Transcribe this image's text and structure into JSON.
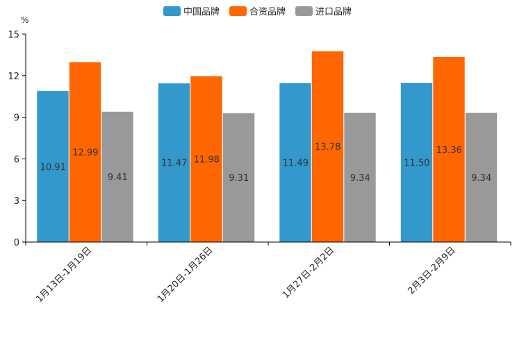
{
  "chart_data": {
    "type": "bar",
    "unit": "%",
    "categories": [
      "1月13日-1月19日",
      "1月20日-1月26日",
      "1月27日-2月2日",
      "2月3日-2月9日"
    ],
    "series": [
      {
        "name": "中国品牌",
        "color": "#3399cc",
        "values": [
          10.91,
          11.47,
          11.49,
          11.5
        ],
        "labels": [
          "10.91",
          "11.47",
          "11.49",
          "11.50"
        ]
      },
      {
        "name": "合资品牌",
        "color": "#ff6600",
        "values": [
          12.99,
          11.98,
          13.78,
          13.36
        ],
        "labels": [
          "12.99",
          "11.98",
          "13.78",
          "13.36"
        ]
      },
      {
        "name": "进口品牌",
        "color": "#999999",
        "values": [
          9.41,
          9.31,
          9.34,
          9.34
        ],
        "labels": [
          "9.41",
          "9.31",
          "9.34",
          "9.34"
        ]
      }
    ],
    "ylim": [
      0,
      15
    ],
    "yticks": [
      0,
      3,
      6,
      9,
      12,
      15
    ],
    "legend_position": "top-center",
    "grid": false
  }
}
